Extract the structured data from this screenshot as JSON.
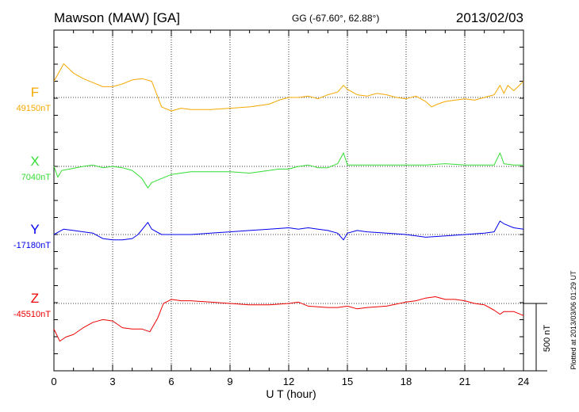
{
  "header": {
    "station": "Mawson (MAW)  [GA]",
    "coords": "GG (-67.60°,  62.88°)",
    "date": "2013/02/03"
  },
  "footer": {
    "plotted": "Plotted at 2013/03/06 01:29 UT"
  },
  "chart_data": {
    "type": "line",
    "title": "Mawson (MAW)  [GA]",
    "xlabel": "U T (hour)",
    "ylabel": "",
    "xlim": [
      0,
      24
    ],
    "xticks": [
      "0",
      "3",
      "6",
      "9",
      "12",
      "15",
      "18",
      "21",
      "24"
    ],
    "grid": true,
    "units_per_division": 250,
    "scale_bar_label": "500 nT",
    "series": [
      {
        "name": "F",
        "baseline_label": "49150nT",
        "color": "#f5a800",
        "baseline_nT": 49150,
        "x": [
          0,
          0.5,
          1,
          1.5,
          2,
          2.5,
          3,
          3.5,
          4,
          4.5,
          5,
          5.5,
          6,
          6.5,
          7,
          8,
          9,
          10,
          11,
          11.5,
          12,
          12.5,
          13,
          13.5,
          14,
          14.5,
          14.8,
          15,
          15.5,
          16,
          16.5,
          17,
          17.5,
          18,
          18.5,
          19,
          19.3,
          19.6,
          20,
          20.5,
          21,
          21.5,
          22,
          22.5,
          22.8,
          23,
          23.2,
          23.5,
          24
        ],
        "y": [
          49270,
          49400,
          49330,
          49290,
          49260,
          49230,
          49230,
          49250,
          49280,
          49290,
          49270,
          49080,
          49050,
          49070,
          49060,
          49060,
          49070,
          49080,
          49100,
          49130,
          49150,
          49150,
          49160,
          49140,
          49170,
          49190,
          49240,
          49210,
          49170,
          49160,
          49180,
          49170,
          49150,
          49140,
          49160,
          49120,
          49080,
          49100,
          49120,
          49130,
          49140,
          49130,
          49150,
          49170,
          49240,
          49180,
          49240,
          49200,
          49270
        ]
      },
      {
        "name": "X",
        "baseline_label": "7040nT",
        "color": "#33dd33",
        "baseline_nT": 7040,
        "x": [
          0,
          0.2,
          0.4,
          0.8,
          1.5,
          2,
          2.5,
          3,
          3.5,
          4,
          4.5,
          4.8,
          5,
          5.5,
          6,
          7,
          8,
          9,
          10,
          11,
          11.5,
          12,
          12.5,
          13,
          13.5,
          14,
          14.5,
          14.8,
          15,
          15.5,
          16,
          17,
          18,
          19,
          20,
          21,
          22,
          22.5,
          22.8,
          23,
          23.5,
          24
        ],
        "y": [
          7040,
          6960,
          7010,
          7020,
          7040,
          7050,
          7030,
          7040,
          7030,
          7010,
          6950,
          6880,
          6920,
          6950,
          6980,
          7000,
          7000,
          7000,
          6990,
          7010,
          7020,
          7020,
          7040,
          7050,
          7030,
          7030,
          7060,
          7140,
          7050,
          7050,
          7050,
          7050,
          7050,
          7050,
          7060,
          7050,
          7050,
          7050,
          7140,
          7060,
          7050,
          7050
        ]
      },
      {
        "name": "Y",
        "baseline_label": "-17180nT",
        "color": "#0000ee",
        "baseline_nT": -17180,
        "x": [
          0,
          0.5,
          1,
          1.5,
          2,
          2.5,
          3,
          3.5,
          4,
          4.3,
          4.8,
          5,
          5.5,
          6,
          7,
          8,
          9,
          10,
          11,
          12,
          12.5,
          13,
          13.5,
          14,
          14.5,
          14.8,
          15,
          15.5,
          16,
          17,
          18,
          19,
          20,
          21,
          22,
          22.5,
          22.8,
          23,
          23.5,
          24
        ],
        "y": [
          -17180,
          -17140,
          -17150,
          -17160,
          -17170,
          -17210,
          -17220,
          -17220,
          -17210,
          -17180,
          -17090,
          -17140,
          -17180,
          -17180,
          -17180,
          -17170,
          -17160,
          -17150,
          -17140,
          -17130,
          -17140,
          -17130,
          -17140,
          -17150,
          -17170,
          -17220,
          -17170,
          -17150,
          -17160,
          -17170,
          -17180,
          -17200,
          -17190,
          -17180,
          -17170,
          -17160,
          -17080,
          -17100,
          -17130,
          -17140
        ]
      },
      {
        "name": "Z",
        "baseline_label": "-45510nT",
        "color": "#ee0000",
        "baseline_nT": -45510,
        "x": [
          0,
          0.3,
          0.6,
          1,
          1.5,
          2,
          2.5,
          3,
          3.5,
          4,
          4.5,
          4.9,
          5.3,
          5.6,
          6,
          6.5,
          7,
          8,
          9,
          10,
          11,
          12,
          12.5,
          13,
          14,
          14.5,
          15,
          15.5,
          16,
          17,
          18,
          18.5,
          19,
          19.5,
          20,
          20.5,
          21,
          21.5,
          22,
          22.5,
          22.8,
          23,
          23.5,
          24
        ],
        "y": [
          -45700,
          -45790,
          -45760,
          -45740,
          -45690,
          -45650,
          -45630,
          -45640,
          -45690,
          -45700,
          -45700,
          -45720,
          -45620,
          -45510,
          -45480,
          -45490,
          -45490,
          -45500,
          -45510,
          -45520,
          -45520,
          -45510,
          -45500,
          -45530,
          -45540,
          -45540,
          -45530,
          -45550,
          -45540,
          -45530,
          -45500,
          -45490,
          -45470,
          -45460,
          -45480,
          -45480,
          -45490,
          -45510,
          -45520,
          -45560,
          -45590,
          -45570,
          -45570,
          -45600
        ]
      }
    ]
  }
}
